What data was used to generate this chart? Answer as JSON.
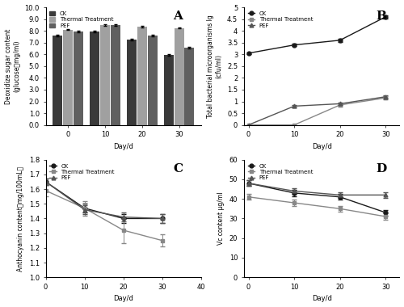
{
  "days": [
    0,
    10,
    20,
    30
  ],
  "panel_A": {
    "title": "A",
    "ylabel_line1": "Deoxidize sugar content",
    "ylabel_line2": "(glucose，mg/ml)",
    "xlabel": "Day/d",
    "ylim": [
      0.0,
      10.0
    ],
    "yticks": [
      0.0,
      1.0,
      2.0,
      3.0,
      4.0,
      5.0,
      6.0,
      7.0,
      8.0,
      9.0,
      10.0
    ],
    "ck": [
      7.6,
      7.95,
      7.25,
      5.95
    ],
    "thermal": [
      8.1,
      8.5,
      8.35,
      8.25
    ],
    "pef": [
      7.95,
      8.5,
      7.6,
      6.6
    ],
    "ck_err": [
      0.05,
      0.05,
      0.05,
      0.08
    ],
    "thermal_err": [
      0.05,
      0.06,
      0.05,
      0.05
    ],
    "pef_err": [
      0.05,
      0.05,
      0.05,
      0.07
    ],
    "colors": [
      "#3a3a3a",
      "#a0a0a0",
      "#606060"
    ]
  },
  "panel_B": {
    "title": "B",
    "ylabel_line1": "Total bacterial microorganisms lg",
    "ylabel_line2": "(cfu/ml)",
    "xlabel": "Day/d",
    "ylim": [
      0,
      5
    ],
    "yticks": [
      0,
      0.5,
      1,
      1.5,
      2,
      2.5,
      3,
      3.5,
      4,
      4.5,
      5
    ],
    "ck": [
      3.05,
      3.4,
      3.6,
      4.6
    ],
    "thermal": [
      0.0,
      0.0,
      0.85,
      1.15
    ],
    "pef": [
      0.0,
      0.8,
      0.9,
      1.2
    ],
    "ck_err": [
      0.04,
      0.05,
      0.06,
      0.07
    ],
    "thermal_err": [
      0.0,
      0.0,
      0.06,
      0.06
    ],
    "pef_err": [
      0.0,
      0.05,
      0.06,
      0.05
    ],
    "colors": [
      "#1a1a1a",
      "#888888",
      "#555555"
    ],
    "markers": [
      "o",
      "s",
      "^"
    ]
  },
  "panel_C": {
    "title": "C",
    "ylabel": "Anthocyanin content（mg/100mL）",
    "xlabel": "Day/d",
    "ylim": [
      1.0,
      1.8
    ],
    "yticks": [
      1.0,
      1.1,
      1.2,
      1.3,
      1.4,
      1.5,
      1.6,
      1.7,
      1.8
    ],
    "xlim": [
      0,
      40
    ],
    "xticks": [
      0,
      10,
      20,
      30,
      40
    ],
    "ck": [
      1.65,
      1.47,
      1.4,
      1.4
    ],
    "thermal": [
      1.59,
      1.47,
      1.32,
      1.25
    ],
    "pef": [
      1.65,
      1.46,
      1.41,
      1.4
    ],
    "ck_err": [
      0.02,
      0.03,
      0.03,
      0.03
    ],
    "thermal_err": [
      0.04,
      0.05,
      0.09,
      0.04
    ],
    "pef_err": [
      0.02,
      0.03,
      0.03,
      0.03
    ],
    "colors": [
      "#1a1a1a",
      "#888888",
      "#555555"
    ],
    "markers": [
      "o",
      "s",
      "^"
    ]
  },
  "panel_D": {
    "title": "D",
    "ylabel": "Vc content μg/ml",
    "xlabel": "Day/d",
    "ylim": [
      0,
      60
    ],
    "yticks": [
      0,
      10,
      20,
      30,
      40,
      50,
      60
    ],
    "ck": [
      48,
      43,
      41,
      33
    ],
    "thermal": [
      41,
      38,
      35,
      31
    ],
    "pef": [
      48,
      44,
      42,
      42
    ],
    "ck_err": [
      1.5,
      1.5,
      1.5,
      1.5
    ],
    "thermal_err": [
      1.5,
      1.5,
      1.5,
      1.5
    ],
    "pef_err": [
      1.5,
      1.5,
      1.5,
      1.5
    ],
    "colors": [
      "#1a1a1a",
      "#888888",
      "#555555"
    ],
    "markers": [
      "o",
      "s",
      "^"
    ]
  },
  "legend_labels": [
    "CK",
    "Thermal Treatment",
    "PEF"
  ],
  "bar_colors": [
    "#3a3a3a",
    "#a0a0a0",
    "#606060"
  ]
}
